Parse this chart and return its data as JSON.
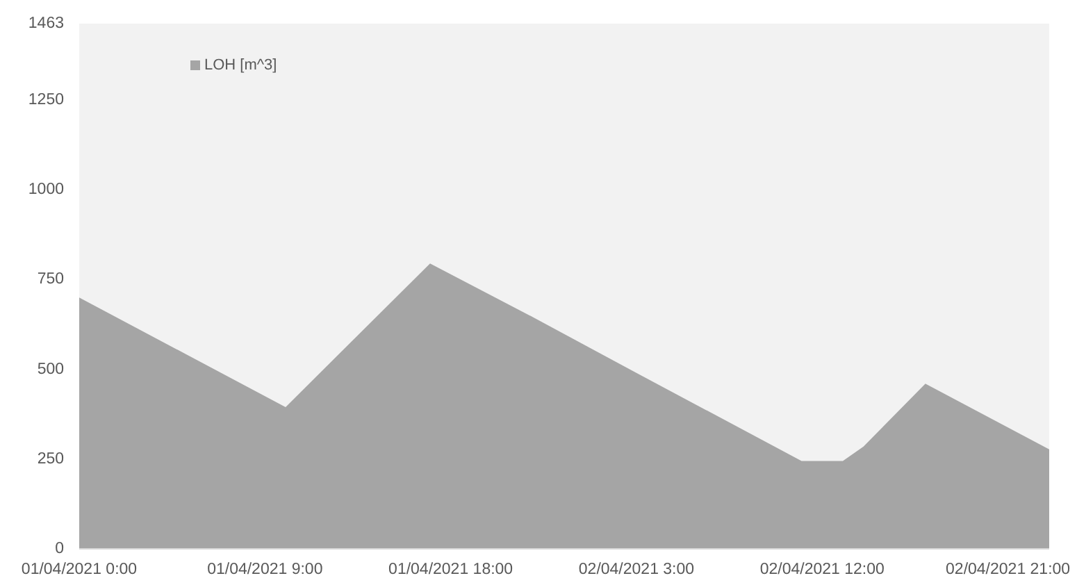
{
  "chart_data": {
    "type": "area",
    "x": [
      "2021-04-01T00:00",
      "2021-04-01T10:00",
      "2021-04-01T17:00",
      "2021-04-01T22:00",
      "2021-04-02T03:00",
      "2021-04-02T11:00",
      "2021-04-02T13:00",
      "2021-04-02T14:00",
      "2021-04-02T17:00",
      "2021-04-02T23:00"
    ],
    "series": [
      {
        "name": "LOH [m^3]",
        "color": "#a5a5a5",
        "values": [
          700,
          395,
          795,
          645,
          490,
          245,
          245,
          285,
          460,
          277
        ]
      }
    ],
    "xlim": [
      "2021-04-01T00:00",
      "2021-04-02T23:00"
    ],
    "xticks": [
      {
        "value": "2021-04-01T00:00",
        "label": "01/04/2021 0:00"
      },
      {
        "value": "2021-04-01T09:00",
        "label": "01/04/2021 9:00"
      },
      {
        "value": "2021-04-01T18:00",
        "label": "01/04/2021 18:00"
      },
      {
        "value": "2021-04-02T03:00",
        "label": "02/04/2021 3:00"
      },
      {
        "value": "2021-04-02T12:00",
        "label": "02/04/2021 12:00"
      },
      {
        "value": "2021-04-02T21:00",
        "label": "02/04/2021 21:00"
      }
    ],
    "ylim": [
      0,
      1463
    ],
    "yticks": [
      0,
      250,
      500,
      750,
      1000,
      1250,
      1463
    ],
    "legend": "top left"
  }
}
